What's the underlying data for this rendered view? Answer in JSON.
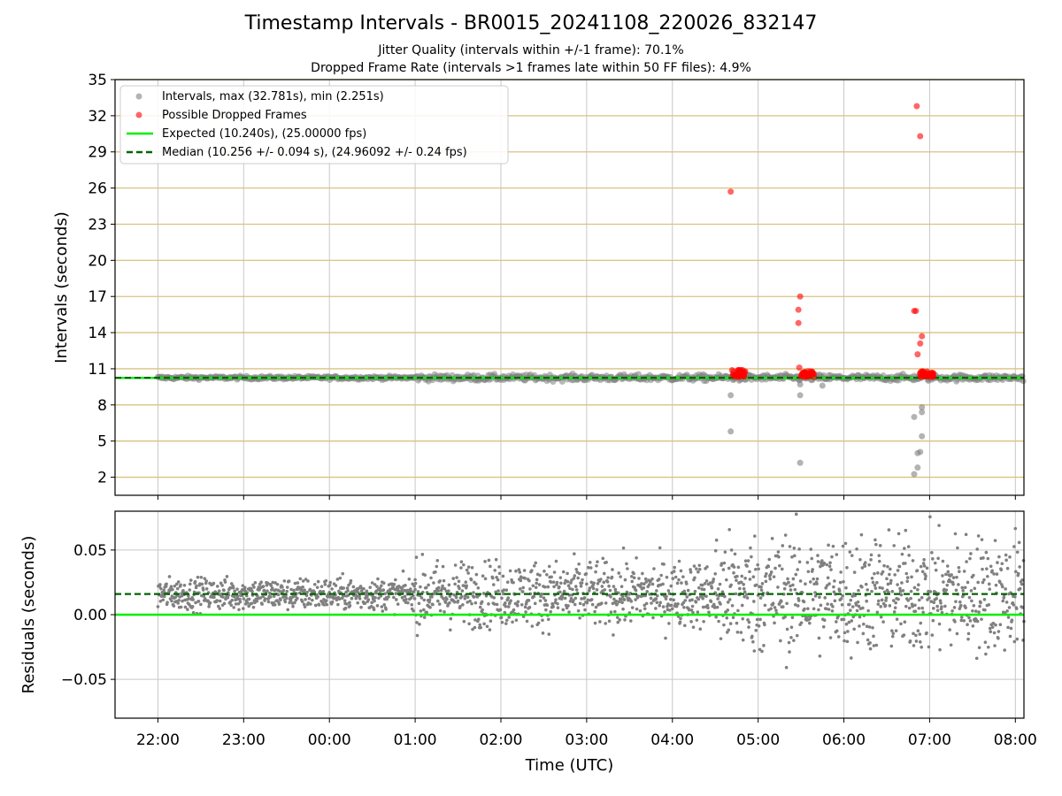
{
  "figure": {
    "title": "Timestamp Intervals - BR0015_20241108_220026_832147",
    "subtitle_1": "Jitter Quality (intervals within +/-1 frame): 70.1%",
    "subtitle_2": "Dropped Frame Rate (intervals >1 frames late within 50 FF files): 4.9%",
    "xlabel": "Time (UTC)"
  },
  "colors": {
    "intervals": "#808080",
    "dropped": "#ff0000",
    "expected": "#00ee00",
    "median": "#006400",
    "hgrid_top": "#d9c280",
    "grid": "#c8c8c8"
  },
  "chart_data": [
    {
      "type": "scatter",
      "panel": "top",
      "ylabel": "Intervals (seconds)",
      "ylim": [
        0.5,
        35
      ],
      "yticks": [
        "2",
        "5",
        "8",
        "11",
        "14",
        "17",
        "20",
        "23",
        "26",
        "29",
        "32",
        "35"
      ],
      "ytick_values": [
        2,
        5,
        8,
        11,
        14,
        17,
        20,
        23,
        26,
        29,
        32,
        35
      ],
      "xlim_hours": [
        21.5,
        32.1
      ],
      "xticks": [
        "22:00",
        "23:00",
        "00:00",
        "01:00",
        "02:00",
        "03:00",
        "04:00",
        "05:00",
        "06:00",
        "07:00",
        "08:00"
      ],
      "xtick_hours": [
        22,
        23,
        24,
        25,
        26,
        27,
        28,
        29,
        30,
        31,
        32
      ],
      "grid": true,
      "legend_placement": "top-left",
      "legend": [
        "Intervals, max (32.781s), min (2.251s)",
        "Possible Dropped Frames",
        "Expected (10.240s), (25.00000 fps)",
        "Median (10.256 +/- 0.094 s), (24.96092 +/- 0.24 fps)"
      ],
      "expected_interval": 10.24,
      "median_interval": 10.256,
      "interval_band": {
        "from_hour": 22.0,
        "to_hour": 32.1,
        "center": 10.256,
        "spread": 0.2
      },
      "outliers_low": [
        {
          "x": 28.68,
          "y": 8.8
        },
        {
          "x": 28.68,
          "y": 5.8
        },
        {
          "x": 29.49,
          "y": 9.7
        },
        {
          "x": 29.49,
          "y": 8.8
        },
        {
          "x": 29.49,
          "y": 3.2
        },
        {
          "x": 30.82,
          "y": 7.0
        },
        {
          "x": 30.86,
          "y": 4.0
        },
        {
          "x": 30.86,
          "y": 2.8
        },
        {
          "x": 30.82,
          "y": 2.25
        },
        {
          "x": 30.91,
          "y": 7.8
        },
        {
          "x": 30.91,
          "y": 7.4
        },
        {
          "x": 30.91,
          "y": 5.4
        },
        {
          "x": 30.89,
          "y": 4.1
        },
        {
          "x": 29.75,
          "y": 9.6
        }
      ],
      "dropped_frames": [
        {
          "x": 28.68,
          "y": 25.7
        },
        {
          "x": 29.49,
          "y": 17.0
        },
        {
          "x": 29.47,
          "y": 15.9
        },
        {
          "x": 29.47,
          "y": 14.8
        },
        {
          "x": 29.48,
          "y": 11.1
        },
        {
          "x": 30.82,
          "y": 15.8
        },
        {
          "x": 30.84,
          "y": 15.8
        },
        {
          "x": 30.85,
          "y": 32.8
        },
        {
          "x": 30.89,
          "y": 30.3
        },
        {
          "x": 30.91,
          "y": 13.7
        },
        {
          "x": 30.89,
          "y": 13.1
        },
        {
          "x": 30.86,
          "y": 12.2
        }
      ],
      "dropped_clusters": [
        {
          "from_hour": 28.68,
          "to_hour": 28.85,
          "y_from": 10.3,
          "y_to": 10.9
        },
        {
          "from_hour": 29.5,
          "to_hour": 29.65,
          "y_from": 10.3,
          "y_to": 10.8
        },
        {
          "from_hour": 30.88,
          "to_hour": 31.05,
          "y_from": 10.3,
          "y_to": 10.8
        }
      ]
    },
    {
      "type": "scatter",
      "panel": "bottom",
      "ylabel": "Residuals (seconds)",
      "ylim": [
        -0.08,
        0.08
      ],
      "yticks": [
        "0.05",
        "0.00",
        "−0.05"
      ],
      "ytick_values": [
        0.05,
        0.0,
        -0.05
      ],
      "xlim_hours": [
        21.5,
        32.1
      ],
      "expected_residual": 0.0,
      "median_residual": 0.016,
      "grid": true,
      "residual_spread": [
        {
          "from_hour": 22.0,
          "to_hour": 25.0,
          "center": 0.016,
          "spread": 0.012
        },
        {
          "from_hour": 25.0,
          "to_hour": 28.5,
          "center": 0.016,
          "spread": 0.025
        },
        {
          "from_hour": 28.5,
          "to_hour": 32.1,
          "center": 0.016,
          "spread": 0.045
        }
      ]
    }
  ]
}
